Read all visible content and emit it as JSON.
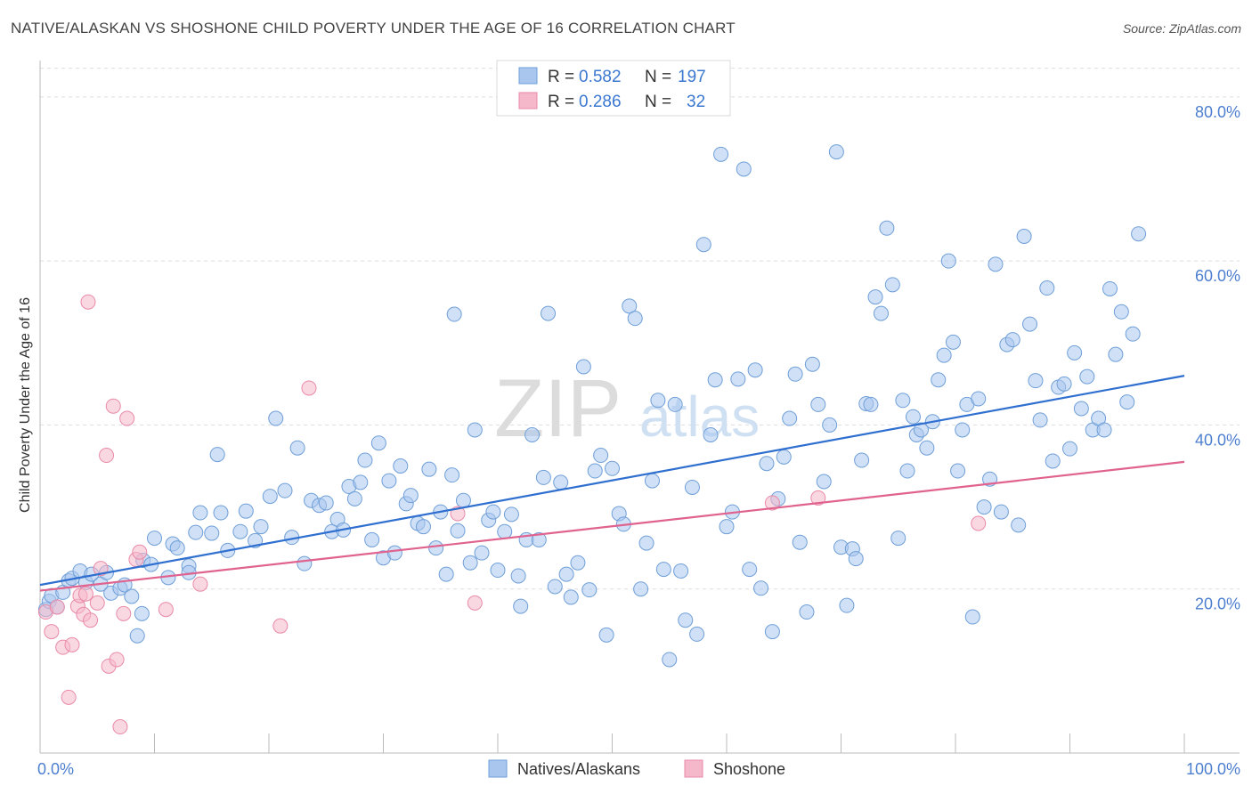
{
  "header": {
    "title": "NATIVE/ALASKAN VS SHOSHONE CHILD POVERTY UNDER THE AGE OF 16 CORRELATION CHART",
    "source": "Source: ZipAtlas.com"
  },
  "watermark": {
    "zip": "ZIP",
    "atlas": "atlas"
  },
  "colors": {
    "blue_fill": "#a9c7ee",
    "blue_stroke": "#6f9fd8",
    "blue_line": "#2f6fcf",
    "pink_fill": "#f5b8cb",
    "pink_stroke": "#e98aa8",
    "pink_line": "#e0628e",
    "grid": "#dddddd",
    "tick_label": "#4d7fcf"
  },
  "legend_stats": [
    {
      "r_label": "R = ",
      "r_value": "0.582",
      "n_label": "N = ",
      "n_value": "197"
    },
    {
      "r_label": "R = ",
      "r_value": "0.286",
      "n_label": "N = ",
      "n_value": "32"
    }
  ],
  "chart_data": {
    "type": "scatter",
    "title": "NATIVE/ALASKAN VS SHOSHONE CHILD POVERTY UNDER THE AGE OF 16 CORRELATION CHART",
    "xlabel": "",
    "ylabel": "Child Poverty Under the Age of 16",
    "xlim": [
      0,
      100
    ],
    "ylim": [
      0,
      84
    ],
    "x_ticks": [
      0,
      10,
      20,
      30,
      40,
      50,
      60,
      70,
      80,
      90,
      100
    ],
    "x_tick_labels": [
      {
        "value": 0,
        "label": "0.0%"
      },
      {
        "value": 100,
        "label": "100.0%"
      }
    ],
    "y_ticks": [
      {
        "value": 20,
        "label": "20.0%"
      },
      {
        "value": 40,
        "label": "40.0%"
      },
      {
        "value": 60,
        "label": "60.0%"
      },
      {
        "value": 80,
        "label": "80.0%"
      }
    ],
    "grid": true,
    "legend_position": "bottom-center",
    "series": [
      {
        "name": "Natives/Alaskans",
        "color": "#a9c7ee",
        "trend": {
          "x": [
            0,
            100
          ],
          "y": [
            20.5,
            46.0
          ]
        },
        "points": [
          [
            0.5,
            17.5
          ],
          [
            0.8,
            18.5
          ],
          [
            1.0,
            19.2
          ],
          [
            1.5,
            17.8
          ],
          [
            2.0,
            19.6
          ],
          [
            2.5,
            21.0
          ],
          [
            2.8,
            21.3
          ],
          [
            3.5,
            22.2
          ],
          [
            4.0,
            20.8
          ],
          [
            4.5,
            21.8
          ],
          [
            5.3,
            20.6
          ],
          [
            5.8,
            22.0
          ],
          [
            6.2,
            19.5
          ],
          [
            7.0,
            20.1
          ],
          [
            7.4,
            20.5
          ],
          [
            8.0,
            19.1
          ],
          [
            8.5,
            14.3
          ],
          [
            8.9,
            17.0
          ],
          [
            9.0,
            23.5
          ],
          [
            9.7,
            23.0
          ],
          [
            10.0,
            26.2
          ],
          [
            11.2,
            21.4
          ],
          [
            11.6,
            25.5
          ],
          [
            12.0,
            25.0
          ],
          [
            13.0,
            22.8
          ],
          [
            13.6,
            26.9
          ],
          [
            14.0,
            29.3
          ],
          [
            15.5,
            36.4
          ],
          [
            15.0,
            26.8
          ],
          [
            15.8,
            29.3
          ],
          [
            16.4,
            24.7
          ],
          [
            17.5,
            27.0
          ],
          [
            18.0,
            29.5
          ],
          [
            18.8,
            25.9
          ],
          [
            19.3,
            27.6
          ],
          [
            20.1,
            31.3
          ],
          [
            20.6,
            40.8
          ],
          [
            21.4,
            32.0
          ],
          [
            22.0,
            26.3
          ],
          [
            22.5,
            37.2
          ],
          [
            23.1,
            23.1
          ],
          [
            23.7,
            30.8
          ],
          [
            24.4,
            30.2
          ],
          [
            25.0,
            30.5
          ],
          [
            25.5,
            27.0
          ],
          [
            26.0,
            28.5
          ],
          [
            26.5,
            27.2
          ],
          [
            27.0,
            32.5
          ],
          [
            27.5,
            31.0
          ],
          [
            28.0,
            33.0
          ],
          [
            28.4,
            35.7
          ],
          [
            29.0,
            26.0
          ],
          [
            29.6,
            37.8
          ],
          [
            30.0,
            23.8
          ],
          [
            30.5,
            33.2
          ],
          [
            31.0,
            24.4
          ],
          [
            31.5,
            35.0
          ],
          [
            32.0,
            30.4
          ],
          [
            32.4,
            31.4
          ],
          [
            33.0,
            28.0
          ],
          [
            33.5,
            27.6
          ],
          [
            34.0,
            34.6
          ],
          [
            34.6,
            25.0
          ],
          [
            35.0,
            29.4
          ],
          [
            35.5,
            21.8
          ],
          [
            36.0,
            33.9
          ],
          [
            36.5,
            27.1
          ],
          [
            37.0,
            30.8
          ],
          [
            37.6,
            23.2
          ],
          [
            38.0,
            39.4
          ],
          [
            38.6,
            24.4
          ],
          [
            39.2,
            28.4
          ],
          [
            39.6,
            29.4
          ],
          [
            40.0,
            22.3
          ],
          [
            40.6,
            27.0
          ],
          [
            41.2,
            29.1
          ],
          [
            41.8,
            21.6
          ],
          [
            42.0,
            17.9
          ],
          [
            42.5,
            26.0
          ],
          [
            43.0,
            38.8
          ],
          [
            43.6,
            26.0
          ],
          [
            44.0,
            33.6
          ],
          [
            44.4,
            53.6
          ],
          [
            45.0,
            20.3
          ],
          [
            45.5,
            33.0
          ],
          [
            46.0,
            21.8
          ],
          [
            46.4,
            19.0
          ],
          [
            47.0,
            23.2
          ],
          [
            47.5,
            47.1
          ],
          [
            48.0,
            19.9
          ],
          [
            48.5,
            34.4
          ],
          [
            49.0,
            36.3
          ],
          [
            49.5,
            14.4
          ],
          [
            50.0,
            34.7
          ],
          [
            50.6,
            29.2
          ],
          [
            51.0,
            27.9
          ],
          [
            51.5,
            54.5
          ],
          [
            52.0,
            53.0
          ],
          [
            52.5,
            20.0
          ],
          [
            53.0,
            25.6
          ],
          [
            53.5,
            33.2
          ],
          [
            54.0,
            43.0
          ],
          [
            54.5,
            22.4
          ],
          [
            55.0,
            11.4
          ],
          [
            55.5,
            42.5
          ],
          [
            56.0,
            22.2
          ],
          [
            56.4,
            16.2
          ],
          [
            57.0,
            32.4
          ],
          [
            57.4,
            14.5
          ],
          [
            58.0,
            62.0
          ],
          [
            58.6,
            38.8
          ],
          [
            59.0,
            45.5
          ],
          [
            59.5,
            73.0
          ],
          [
            60.0,
            27.6
          ],
          [
            60.5,
            29.4
          ],
          [
            61.0,
            45.6
          ],
          [
            61.5,
            71.2
          ],
          [
            62.0,
            22.4
          ],
          [
            62.5,
            46.7
          ],
          [
            63.0,
            20.1
          ],
          [
            63.5,
            35.3
          ],
          [
            64.0,
            14.8
          ],
          [
            64.5,
            31.0
          ],
          [
            65.0,
            36.1
          ],
          [
            65.5,
            40.8
          ],
          [
            66.0,
            46.2
          ],
          [
            66.4,
            25.7
          ],
          [
            67.0,
            17.2
          ],
          [
            67.5,
            47.4
          ],
          [
            68.0,
            42.5
          ],
          [
            68.5,
            33.1
          ],
          [
            69.0,
            40.0
          ],
          [
            69.6,
            73.3
          ],
          [
            70.0,
            25.1
          ],
          [
            70.5,
            18.0
          ],
          [
            71.0,
            24.9
          ],
          [
            71.3,
            23.7
          ],
          [
            71.8,
            35.7
          ],
          [
            72.2,
            42.6
          ],
          [
            72.6,
            42.5
          ],
          [
            73.0,
            55.6
          ],
          [
            73.5,
            53.6
          ],
          [
            74.0,
            64.0
          ],
          [
            74.5,
            57.1
          ],
          [
            75.0,
            26.2
          ],
          [
            75.4,
            43.0
          ],
          [
            75.8,
            34.4
          ],
          [
            76.3,
            41.0
          ],
          [
            76.6,
            38.8
          ],
          [
            77.0,
            39.4
          ],
          [
            77.5,
            37.2
          ],
          [
            78.0,
            40.4
          ],
          [
            78.5,
            45.5
          ],
          [
            79.0,
            48.5
          ],
          [
            79.4,
            60.0
          ],
          [
            79.8,
            50.1
          ],
          [
            80.2,
            34.4
          ],
          [
            80.6,
            39.4
          ],
          [
            81.0,
            42.5
          ],
          [
            81.5,
            16.6
          ],
          [
            82.0,
            43.2
          ],
          [
            82.5,
            30.0
          ],
          [
            83.0,
            33.4
          ],
          [
            83.5,
            59.6
          ],
          [
            84.0,
            29.4
          ],
          [
            84.5,
            49.8
          ],
          [
            85.0,
            50.4
          ],
          [
            85.5,
            27.8
          ],
          [
            86.0,
            63.0
          ],
          [
            86.5,
            52.3
          ],
          [
            87.0,
            45.4
          ],
          [
            87.4,
            40.6
          ],
          [
            88.0,
            56.7
          ],
          [
            88.5,
            35.6
          ],
          [
            89.0,
            44.6
          ],
          [
            89.5,
            45.0
          ],
          [
            90.0,
            37.1
          ],
          [
            90.4,
            48.8
          ],
          [
            91.0,
            42.0
          ],
          [
            91.5,
            45.9
          ],
          [
            92.0,
            39.4
          ],
          [
            92.5,
            40.8
          ],
          [
            93.0,
            39.4
          ],
          [
            93.5,
            56.6
          ],
          [
            94.0,
            48.6
          ],
          [
            94.5,
            53.8
          ],
          [
            95.0,
            42.8
          ],
          [
            95.5,
            51.1
          ],
          [
            96.0,
            63.3
          ],
          [
            36.2,
            53.5
          ],
          [
            13.0,
            22.0
          ]
        ]
      },
      {
        "name": "Shoshone",
        "color": "#f5b8cb",
        "trend": {
          "x": [
            0,
            100
          ],
          "y": [
            19.8,
            35.5
          ]
        },
        "points": [
          [
            0.5,
            17.2
          ],
          [
            1.0,
            14.8
          ],
          [
            1.5,
            17.8
          ],
          [
            2.0,
            12.9
          ],
          [
            2.5,
            6.8
          ],
          [
            2.8,
            13.2
          ],
          [
            3.3,
            17.9
          ],
          [
            3.5,
            19.2
          ],
          [
            3.8,
            16.9
          ],
          [
            4.0,
            19.4
          ],
          [
            4.2,
            55.0
          ],
          [
            4.4,
            16.2
          ],
          [
            5.0,
            18.3
          ],
          [
            5.3,
            22.5
          ],
          [
            5.8,
            36.3
          ],
          [
            6.0,
            10.6
          ],
          [
            6.4,
            42.3
          ],
          [
            6.7,
            11.4
          ],
          [
            7.0,
            3.2
          ],
          [
            7.3,
            17.0
          ],
          [
            7.6,
            40.8
          ],
          [
            8.4,
            23.6
          ],
          [
            8.7,
            24.5
          ],
          [
            11.0,
            17.5
          ],
          [
            14.0,
            20.6
          ],
          [
            21.0,
            15.5
          ],
          [
            23.5,
            44.5
          ],
          [
            36.5,
            29.2
          ],
          [
            38.0,
            18.3
          ],
          [
            64.0,
            30.5
          ],
          [
            68.0,
            31.1
          ],
          [
            82.0,
            28.0
          ]
        ]
      }
    ]
  },
  "legend": {
    "items": [
      "Natives/Alaskans",
      "Shoshone"
    ]
  }
}
